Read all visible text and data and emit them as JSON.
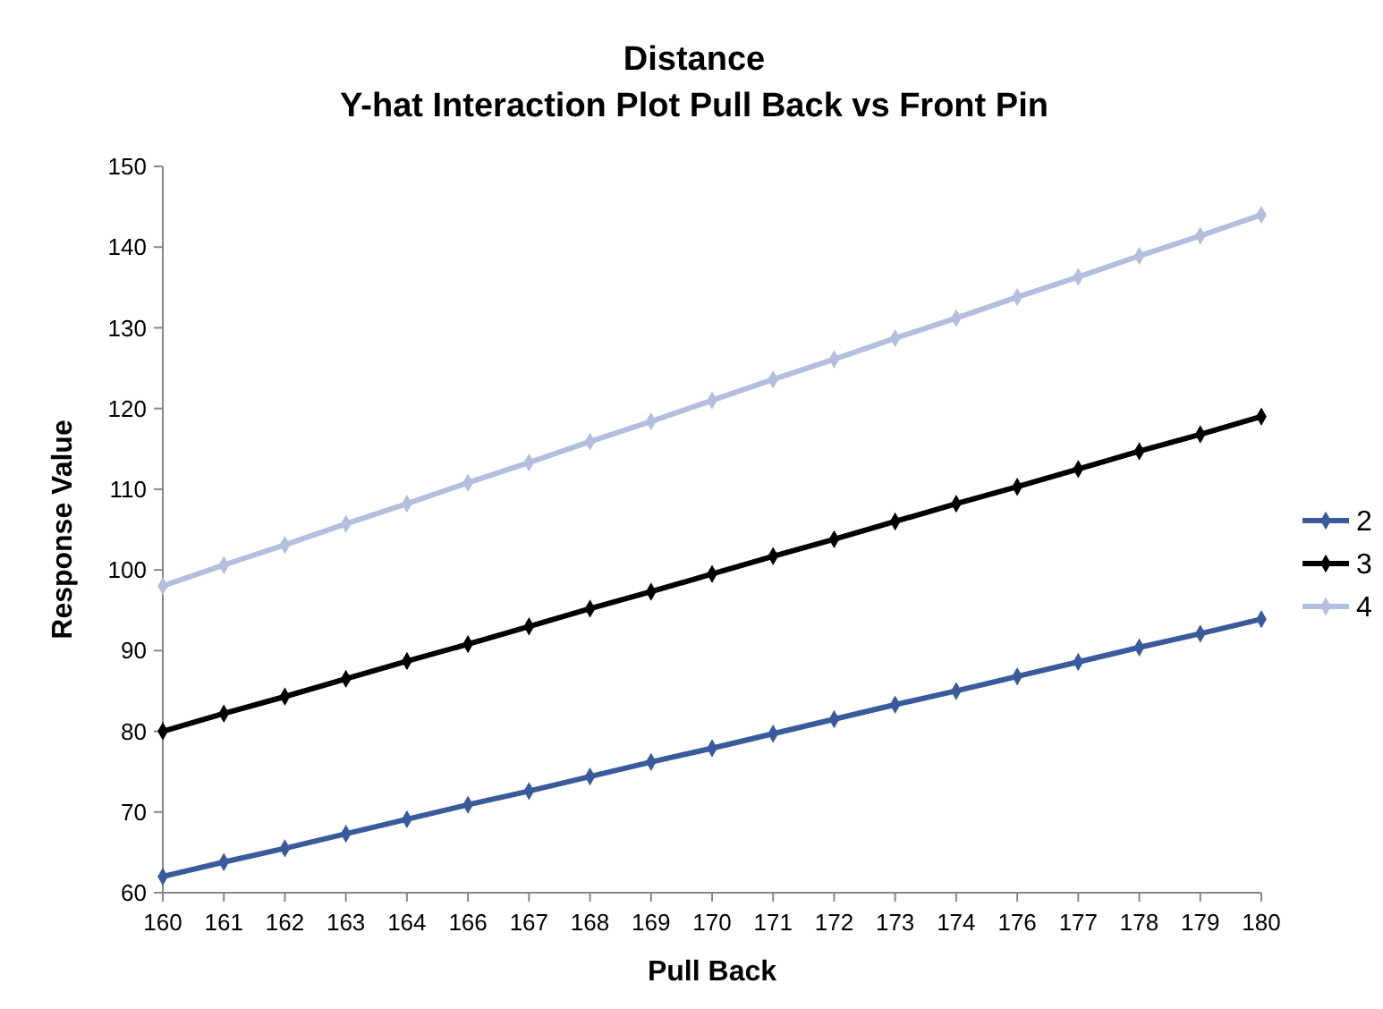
{
  "chart_data": {
    "type": "line",
    "title": "Distance\nY-hat Interaction Plot Pull Back  vs Front Pin",
    "xlabel": "Pull Back",
    "ylabel": "Response Value",
    "categories": [
      "160",
      "161",
      "162",
      "163",
      "164",
      "166",
      "167",
      "168",
      "169",
      "170",
      "171",
      "172",
      "173",
      "174",
      "176",
      "177",
      "178",
      "179",
      "180"
    ],
    "series": [
      {
        "name": "2",
        "color": "#3a5a9c",
        "values": [
          62,
          63.8,
          65.5,
          67.3,
          69.1,
          70.9,
          72.6,
          74.4,
          76.2,
          77.9,
          79.7,
          81.5,
          83.3,
          85,
          86.8,
          88.6,
          90.4,
          92.1,
          93.9
        ]
      },
      {
        "name": "3",
        "color": "#000000",
        "values": [
          80,
          82.2,
          84.3,
          86.5,
          88.7,
          90.8,
          93,
          95.2,
          97.3,
          99.5,
          101.7,
          103.8,
          106,
          108.2,
          110.3,
          112.5,
          114.7,
          116.8,
          119
        ]
      },
      {
        "name": "4",
        "color": "#b4bfdf",
        "values": [
          98,
          100.6,
          103.1,
          105.7,
          108.2,
          110.8,
          113.3,
          115.9,
          118.4,
          121,
          123.6,
          126.1,
          128.7,
          131.2,
          133.8,
          136.3,
          138.9,
          141.4,
          144
        ]
      }
    ],
    "ylim": [
      60,
      150
    ],
    "yticks": [
      60,
      70,
      80,
      90,
      100,
      110,
      120,
      130,
      140,
      150
    ],
    "grid": false,
    "legend": "right",
    "marker": "diamond",
    "line_style": "solid"
  }
}
